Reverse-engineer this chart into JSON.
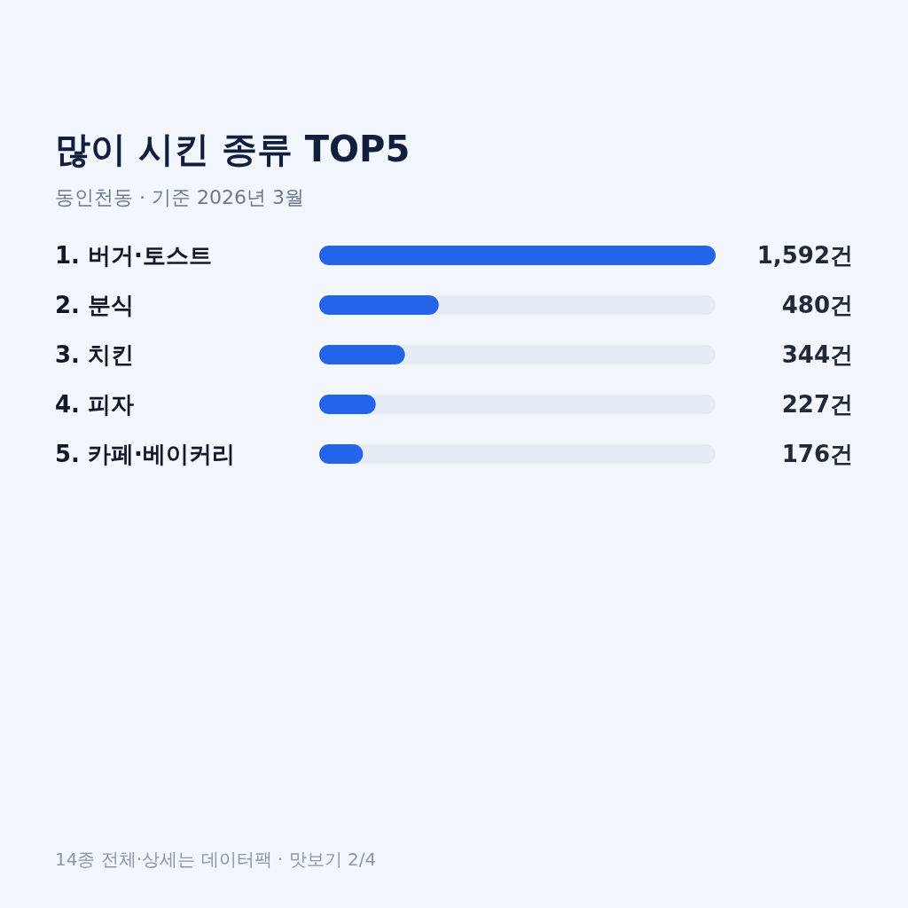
{
  "chart_data": {
    "type": "bar",
    "orientation": "horizontal",
    "title": "많이 시킨 종류 TOP5",
    "subtitle": "동인천동 · 기준 2026년 3월",
    "categories": [
      "1. 버거·토스트",
      "2. 분식",
      "3. 치킨",
      "4. 피자",
      "5. 카페·베이커리"
    ],
    "values": [
      1592,
      480,
      344,
      227,
      176
    ],
    "value_labels": [
      "1,592건",
      "480건",
      "344건",
      "227건",
      "176건"
    ],
    "color": "#2563eb",
    "annotations": [
      "14종 전체·상세는 데이터팩 · 맛보기 2/4"
    ]
  }
}
